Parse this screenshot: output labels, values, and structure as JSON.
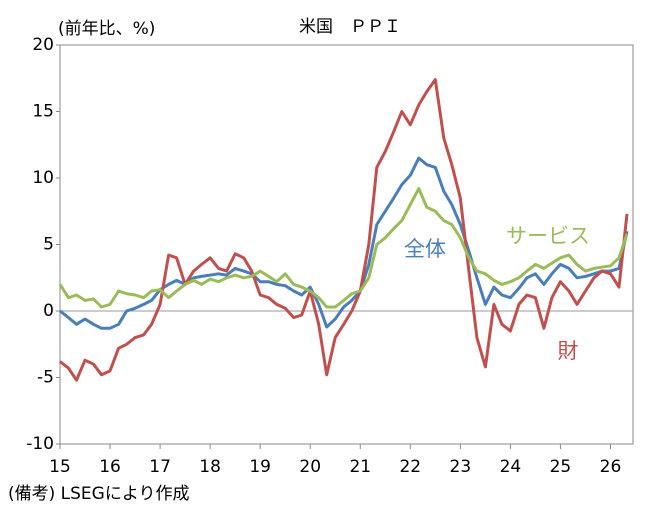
{
  "chart_data": {
    "type": "line",
    "title": "米国　ＰＰＩ",
    "y_axis_label": "(前年比、%)",
    "note": "(備考) LSEGにより作成",
    "x": [
      15,
      15.17,
      15.33,
      15.5,
      15.67,
      15.83,
      16,
      16.17,
      16.33,
      16.5,
      16.67,
      16.83,
      17,
      17.17,
      17.33,
      17.5,
      17.67,
      17.83,
      18,
      18.17,
      18.33,
      18.5,
      18.67,
      18.83,
      19,
      19.17,
      19.33,
      19.5,
      19.67,
      19.83,
      20,
      20.17,
      20.33,
      20.5,
      20.67,
      20.83,
      21,
      21.17,
      21.33,
      21.5,
      21.67,
      21.83,
      22,
      22.17,
      22.33,
      22.5,
      22.67,
      22.83,
      23,
      23.17,
      23.33,
      23.5,
      23.67,
      23.83,
      24,
      24.17,
      24.33,
      24.5,
      24.67,
      24.83,
      25,
      25.17,
      25.33,
      25.5,
      25.67,
      25.83,
      26,
      26.17,
      26.33
    ],
    "series": [
      {
        "name": "全体",
        "color": "#4a7ebb",
        "values": [
          0,
          -0.5,
          -1,
          -0.6,
          -1,
          -1.3,
          -1.3,
          -1,
          0,
          0.2,
          0.5,
          0.8,
          1.6,
          2,
          2.3,
          2,
          2.5,
          2.6,
          2.7,
          2.8,
          2.7,
          3.2,
          3,
          2.8,
          2.2,
          2.2,
          2,
          1.9,
          1.5,
          1.2,
          1.8,
          0.5,
          -1.2,
          -0.6,
          0.3,
          0.8,
          1.5,
          3.5,
          6.5,
          7.5,
          8.5,
          9.5,
          10.2,
          11.5,
          11,
          10.8,
          9,
          8,
          6.5,
          4.5,
          2.5,
          0.5,
          1.8,
          1.2,
          1,
          1.7,
          2.5,
          2.8,
          2,
          2.8,
          3.5,
          3.2,
          2.5,
          2.6,
          2.8,
          3,
          3,
          3.2,
          6
        ]
      },
      {
        "name": "財",
        "color": "#c0504d",
        "values": [
          -3.8,
          -4.3,
          -5.2,
          -3.7,
          -4,
          -4.8,
          -4.5,
          -2.8,
          -2.5,
          -2,
          -1.8,
          -1,
          0.5,
          4.2,
          4,
          2,
          3,
          3.5,
          4,
          3.2,
          3,
          4.3,
          4,
          3,
          1.2,
          1,
          0.5,
          0.2,
          -0.5,
          -0.3,
          1.5,
          -1,
          -4.8,
          -2,
          -1,
          0,
          1.5,
          5,
          10.8,
          12,
          13.5,
          15,
          14,
          15.5,
          16.5,
          17.4,
          13,
          11,
          8.5,
          3,
          -2,
          -4.2,
          0.5,
          -1,
          -1.5,
          0.5,
          1.2,
          1,
          -1.3,
          1,
          2.2,
          1.5,
          0.5,
          1.5,
          2.5,
          3,
          2.8,
          1.8,
          7.3
        ]
      },
      {
        "name": "サービス",
        "color": "#9bbb59",
        "values": [
          2,
          1,
          1.2,
          0.8,
          0.9,
          0.3,
          0.5,
          1.5,
          1.3,
          1.2,
          1,
          1.5,
          1.6,
          1,
          1.5,
          2,
          2.3,
          2,
          2.4,
          2.2,
          2.5,
          2.7,
          2.5,
          2.6,
          3,
          2.6,
          2.2,
          2.8,
          2,
          1.8,
          1.5,
          1,
          0.3,
          0.3,
          0.8,
          1.3,
          1.5,
          2.5,
          5,
          5.5,
          6.2,
          6.8,
          8,
          9.2,
          7.8,
          7.5,
          6.8,
          6.5,
          5.5,
          4,
          3,
          2.8,
          2.3,
          2,
          2.2,
          2.5,
          3,
          3.5,
          3.2,
          3.6,
          4,
          4.2,
          3.5,
          3,
          3.2,
          3.3,
          3.4,
          4,
          5.8
        ]
      }
    ],
    "xlim": [
      15,
      26.45
    ],
    "xticks": [
      15,
      16,
      17,
      18,
      19,
      20,
      21,
      22,
      23,
      24,
      25,
      26
    ],
    "ylim": [
      -10,
      20
    ],
    "yticks": [
      -10,
      -5,
      0,
      5,
      10,
      15,
      20
    ],
    "grid": false
  }
}
